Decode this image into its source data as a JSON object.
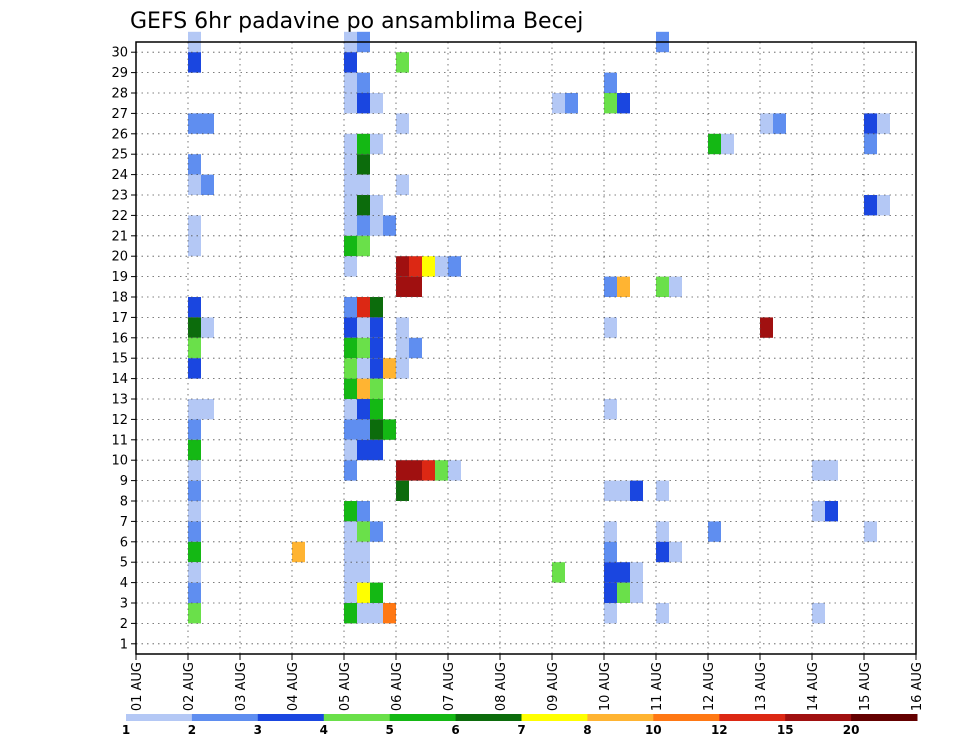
{
  "chart_data": {
    "type": "heatmap",
    "title": "GEFS 6hr padavine po ansamblima Becej",
    "xlabel": "",
    "ylabel": "",
    "x_tick_labels": [
      "01 AUG",
      "02 AUG",
      "03 AUG",
      "04 AUG",
      "05 AUG",
      "06 AUG",
      "07 AUG",
      "08 AUG",
      "09 AUG",
      "10 AUG",
      "11 AUG",
      "12 AUG",
      "13 AUG",
      "14 AUG",
      "15 AUG",
      "16 AUG"
    ],
    "xlim": [
      0,
      15
    ],
    "y_tick_labels": [
      "1",
      "2",
      "3",
      "4",
      "5",
      "6",
      "7",
      "8",
      "9",
      "10",
      "11",
      "12",
      "13",
      "14",
      "15",
      "16",
      "17",
      "18",
      "19",
      "20",
      "21",
      "22",
      "23",
      "24",
      "25",
      "26",
      "27",
      "28",
      "29",
      "30"
    ],
    "ylim": [
      0.5,
      30.5
    ],
    "grid": true,
    "colorbar": {
      "labels": [
        "1",
        "2",
        "3",
        "4",
        "5",
        "6",
        "7",
        "8",
        "10",
        "12",
        "15",
        "20"
      ],
      "colors": [
        "#b4c8f5",
        "#5f8ef0",
        "#1a46e0",
        "#6ae04a",
        "#14b814",
        "#0c6c0c",
        "#ffff00",
        "#ffb432",
        "#ff7814",
        "#dc2814",
        "#a01010",
        "#640000"
      ]
    },
    "data_units": "precipitation class (colorbar)",
    "cells": [
      [
        30,
        1,
        1
      ],
      [
        30,
        4,
        1
      ],
      [
        30,
        4,
        2
      ],
      [
        30,
        10,
        2
      ],
      [
        29,
        1,
        3
      ],
      [
        29,
        4,
        3
      ],
      [
        29,
        5,
        4
      ],
      [
        28,
        4,
        1
      ],
      [
        28,
        4,
        2
      ],
      [
        28,
        9,
        2
      ],
      [
        27,
        4,
        1
      ],
      [
        27,
        4,
        3
      ],
      [
        27,
        4,
        1
      ],
      [
        27,
        8,
        1
      ],
      [
        27,
        8,
        2
      ],
      [
        27,
        9,
        4
      ],
      [
        27,
        9,
        3
      ],
      [
        26,
        1,
        2
      ],
      [
        26,
        1,
        2
      ],
      [
        26,
        5,
        1
      ],
      [
        26,
        12,
        1
      ],
      [
        26,
        12,
        2
      ],
      [
        26,
        14,
        3
      ],
      [
        26,
        14,
        1
      ],
      [
        25,
        4,
        1
      ],
      [
        25,
        4,
        5
      ],
      [
        25,
        4,
        1
      ],
      [
        25,
        11,
        5
      ],
      [
        25,
        11,
        1
      ],
      [
        25,
        14,
        2
      ],
      [
        24,
        1,
        2
      ],
      [
        24,
        4,
        1
      ],
      [
        24,
        4,
        6
      ],
      [
        23,
        1,
        1
      ],
      [
        23,
        1,
        2
      ],
      [
        23,
        4,
        1
      ],
      [
        23,
        4,
        1
      ],
      [
        23,
        5,
        1
      ],
      [
        22,
        4,
        1
      ],
      [
        22,
        4,
        6
      ],
      [
        22,
        4,
        1
      ],
      [
        22,
        14,
        3
      ],
      [
        22,
        14,
        1
      ],
      [
        21,
        1,
        1
      ],
      [
        21,
        4,
        1
      ],
      [
        21,
        4,
        2
      ],
      [
        21,
        4,
        1
      ],
      [
        21,
        4,
        2
      ],
      [
        20,
        1,
        1
      ],
      [
        20,
        4,
        5
      ],
      [
        20,
        4,
        4
      ],
      [
        19,
        4,
        1
      ],
      [
        19,
        5,
        11
      ],
      [
        19,
        5,
        10
      ],
      [
        19,
        5,
        7
      ],
      [
        19,
        5,
        1
      ],
      [
        19,
        5,
        2
      ],
      [
        18,
        5,
        11
      ],
      [
        18,
        5,
        11
      ],
      [
        18,
        9,
        2
      ],
      [
        18,
        9,
        8
      ],
      [
        18,
        10,
        4
      ],
      [
        18,
        10,
        1
      ],
      [
        17,
        1,
        3
      ],
      [
        17,
        4,
        2
      ],
      [
        17,
        4,
        10
      ],
      [
        17,
        4,
        6
      ],
      [
        16,
        1,
        6
      ],
      [
        16,
        1,
        1
      ],
      [
        16,
        4,
        3
      ],
      [
        16,
        4,
        1
      ],
      [
        16,
        4,
        3
      ],
      [
        16,
        5,
        1
      ],
      [
        16,
        9,
        1
      ],
      [
        16,
        12,
        11
      ],
      [
        15,
        1,
        4
      ],
      [
        15,
        4,
        5
      ],
      [
        15,
        4,
        4
      ],
      [
        15,
        4,
        3
      ],
      [
        15,
        5,
        1
      ],
      [
        15,
        5,
        2
      ],
      [
        14,
        1,
        3
      ],
      [
        14,
        4,
        4
      ],
      [
        14,
        4,
        1
      ],
      [
        14,
        4,
        3
      ],
      [
        14,
        4,
        8
      ],
      [
        14,
        5,
        1
      ],
      [
        13,
        4,
        5
      ],
      [
        13,
        4,
        8
      ],
      [
        13,
        4,
        4
      ],
      [
        12,
        1,
        1
      ],
      [
        12,
        1,
        1
      ],
      [
        12,
        4,
        1
      ],
      [
        12,
        4,
        3
      ],
      [
        12,
        4,
        5
      ],
      [
        12,
        9,
        1
      ],
      [
        11,
        1,
        2
      ],
      [
        11,
        4,
        2
      ],
      [
        11,
        4,
        2
      ],
      [
        11,
        4,
        6
      ],
      [
        11,
        4,
        5
      ],
      [
        10,
        1,
        5
      ],
      [
        10,
        4,
        1
      ],
      [
        10,
        4,
        3
      ],
      [
        10,
        4,
        3
      ],
      [
        9,
        1,
        1
      ],
      [
        9,
        4,
        2
      ],
      [
        9,
        5,
        11
      ],
      [
        9,
        5,
        11
      ],
      [
        9,
        5,
        10
      ],
      [
        9,
        5,
        4
      ],
      [
        9,
        5,
        1
      ],
      [
        9,
        13,
        1
      ],
      [
        9,
        13,
        1
      ],
      [
        8,
        1,
        2
      ],
      [
        8,
        5,
        6
      ],
      [
        8,
        9,
        1
      ],
      [
        8,
        9,
        1
      ],
      [
        8,
        9,
        3
      ],
      [
        8,
        10,
        1
      ],
      [
        7,
        1,
        1
      ],
      [
        7,
        4,
        5
      ],
      [
        7,
        4,
        2
      ],
      [
        7,
        13,
        1
      ],
      [
        7,
        13,
        3
      ],
      [
        6,
        1,
        2
      ],
      [
        6,
        4,
        1
      ],
      [
        6,
        4,
        4
      ],
      [
        6,
        4,
        2
      ],
      [
        6,
        9,
        1
      ],
      [
        6,
        10,
        1
      ],
      [
        6,
        11,
        2
      ],
      [
        6,
        14,
        1
      ],
      [
        5,
        1,
        5
      ],
      [
        5,
        3,
        8
      ],
      [
        5,
        4,
        1
      ],
      [
        5,
        4,
        1
      ],
      [
        5,
        9,
        2
      ],
      [
        5,
        10,
        3
      ],
      [
        5,
        10,
        1
      ],
      [
        4,
        1,
        1
      ],
      [
        4,
        4,
        1
      ],
      [
        4,
        4,
        1
      ],
      [
        4,
        8,
        4
      ],
      [
        4,
        9,
        3
      ],
      [
        4,
        9,
        3
      ],
      [
        4,
        9,
        1
      ],
      [
        3,
        1,
        2
      ],
      [
        3,
        4,
        1
      ],
      [
        3,
        4,
        7
      ],
      [
        3,
        4,
        5
      ],
      [
        3,
        9,
        3
      ],
      [
        3,
        9,
        4
      ],
      [
        3,
        9,
        1
      ],
      [
        2,
        1,
        4
      ],
      [
        2,
        4,
        5
      ],
      [
        2,
        4,
        1
      ],
      [
        2,
        4,
        1
      ],
      [
        2,
        4,
        9
      ],
      [
        2,
        9,
        1
      ],
      [
        2,
        10,
        1
      ],
      [
        2,
        13,
        1
      ]
    ]
  }
}
